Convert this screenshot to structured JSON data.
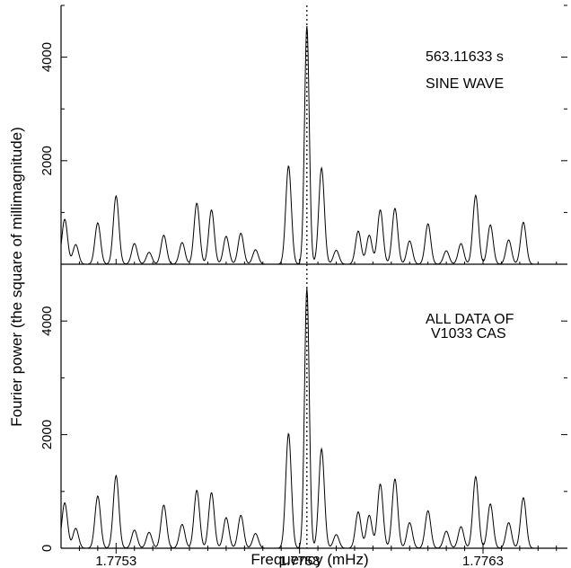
{
  "figure": {
    "xlabel": "Frequency (mHz)",
    "ylabel": "Fourier power (the square of millimagnitude)"
  },
  "chart_data": [
    {
      "type": "line",
      "panel": "top",
      "annotations": [
        "563.11633 s",
        "SINE WAVE"
      ],
      "xlim": [
        1.77515,
        1.77653
      ],
      "ylim": [
        0,
        5000
      ],
      "yticks": [
        {
          "value": 2000,
          "label": "2000"
        },
        {
          "value": 4000,
          "label": "4000"
        }
      ],
      "marker_frequency": 1.77582,
      "series": [
        {
          "peaks": [
            [
              1.77516,
              870
            ],
            [
              1.77519,
              380
            ],
            [
              1.77525,
              800
            ],
            [
              1.7753,
              1320
            ],
            [
              1.77535,
              400
            ],
            [
              1.77539,
              230
            ],
            [
              1.77543,
              560
            ],
            [
              1.77548,
              420
            ],
            [
              1.77552,
              1180
            ],
            [
              1.77556,
              1050
            ],
            [
              1.7756,
              540
            ],
            [
              1.77564,
              600
            ],
            [
              1.77568,
              280
            ],
            [
              1.77577,
              1900
            ],
            [
              1.77582,
              4600
            ],
            [
              1.77586,
              1860
            ],
            [
              1.7759,
              270
            ],
            [
              1.77596,
              640
            ],
            [
              1.77599,
              560
            ],
            [
              1.77602,
              1050
            ],
            [
              1.77606,
              1080
            ],
            [
              1.7761,
              450
            ],
            [
              1.77615,
              780
            ],
            [
              1.7762,
              260
            ],
            [
              1.77624,
              400
            ],
            [
              1.77628,
              1330
            ],
            [
              1.77632,
              760
            ],
            [
              1.77637,
              470
            ],
            [
              1.77641,
              810
            ]
          ]
        }
      ]
    },
    {
      "type": "line",
      "panel": "bottom",
      "annotations": [
        "ALL DATA OF",
        "V1033  CAS"
      ],
      "xlim": [
        1.77515,
        1.77653
      ],
      "ylim": [
        0,
        5000
      ],
      "xticks": [
        {
          "value": 1.7753,
          "label": "1.7753"
        },
        {
          "value": 1.7758,
          "label": "1.7758"
        },
        {
          "value": 1.7763,
          "label": "1.7763"
        }
      ],
      "yticks": [
        {
          "value": 0,
          "label": "0"
        },
        {
          "value": 2000,
          "label": "2000"
        },
        {
          "value": 4000,
          "label": "4000"
        }
      ],
      "marker_frequency": 1.77582,
      "series": [
        {
          "peaks": [
            [
              1.77516,
              800
            ],
            [
              1.77519,
              350
            ],
            [
              1.77525,
              920
            ],
            [
              1.7753,
              1280
            ],
            [
              1.77535,
              320
            ],
            [
              1.77539,
              280
            ],
            [
              1.77543,
              760
            ],
            [
              1.77548,
              420
            ],
            [
              1.77552,
              1020
            ],
            [
              1.77556,
              980
            ],
            [
              1.7756,
              540
            ],
            [
              1.77564,
              580
            ],
            [
              1.77568,
              260
            ],
            [
              1.77577,
              2020
            ],
            [
              1.77582,
              4580
            ],
            [
              1.77586,
              1750
            ],
            [
              1.7759,
              240
            ],
            [
              1.77596,
              640
            ],
            [
              1.77599,
              580
            ],
            [
              1.77602,
              1130
            ],
            [
              1.77606,
              1220
            ],
            [
              1.7761,
              450
            ],
            [
              1.77615,
              660
            ],
            [
              1.7762,
              300
            ],
            [
              1.77624,
              380
            ],
            [
              1.77628,
              1260
            ],
            [
              1.77632,
              780
            ],
            [
              1.77637,
              450
            ],
            [
              1.77641,
              890
            ]
          ]
        }
      ]
    }
  ]
}
